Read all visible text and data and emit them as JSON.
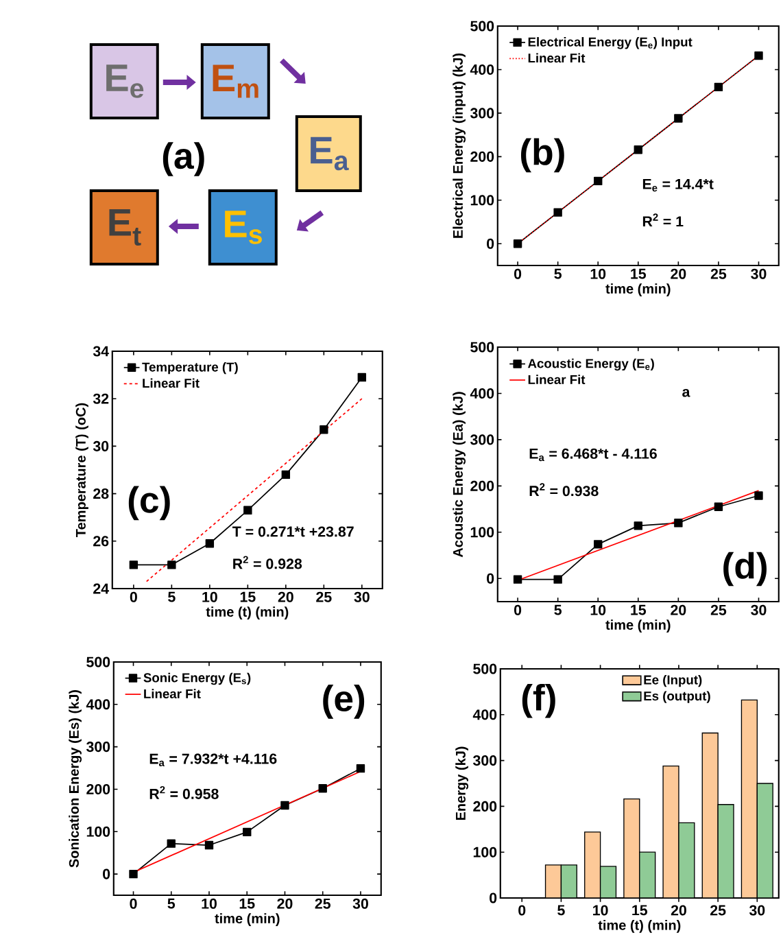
{
  "chart_data": [
    {
      "type": "other",
      "annotations": [
        "E$_{e}$",
        "E$_{m}$",
        "E$_{a}$",
        "E$_{s}$",
        "E$_{t}$",
        "(a)"
      ]
    },
    {
      "type": "line",
      "xlabel": "time (min)",
      "ylabel": "Electrical Energy (input) (kJ)",
      "xlim": [
        -2.5,
        32.5
      ],
      "ylim": [
        -50,
        500
      ],
      "xticks": [
        0,
        5,
        10,
        15,
        20,
        25,
        30
      ],
      "yticks": [
        0,
        100,
        200,
        300,
        400,
        500
      ],
      "legend": "top left",
      "annotations": [
        "(b)",
        "E$_{e}$ = 14.4*t",
        "R$^{2}$ = 1"
      ],
      "series": [
        {
          "name": "Electrical Energy (E$_{e}$) Input",
          "color": "#000000",
          "marker": "square",
          "line_style": "solid",
          "x": [
            0,
            5,
            10,
            15,
            20,
            25,
            30
          ],
          "values": [
            0,
            72,
            144,
            216,
            288,
            360,
            432
          ]
        },
        {
          "name": "Linear Fit",
          "color": "#ff0000",
          "marker": "none",
          "line_style": "dotted",
          "x": [
            0,
            30
          ],
          "values": [
            0,
            432
          ]
        }
      ]
    },
    {
      "type": "line",
      "xlabel": "time (t) (min)",
      "ylabel": "Temperature (T) (oC)",
      "xlim": [
        -2.8,
        32.7
      ],
      "ylim": [
        24,
        34
      ],
      "xticks": [
        0,
        5,
        10,
        15,
        20,
        25,
        30
      ],
      "yticks": [
        24,
        26,
        28,
        30,
        32,
        34
      ],
      "legend": "top left",
      "annotations": [
        "(c)",
        "T = 0.271*t +23.87",
        "R$^{2}$ = 0.928"
      ],
      "series": [
        {
          "name": "Temperature (T)",
          "color": "#000000",
          "marker": "square",
          "line_style": "solid",
          "x": [
            0,
            5,
            10,
            15,
            20,
            25,
            30
          ],
          "values": [
            25,
            25,
            25.9,
            27.3,
            28.8,
            30.7,
            32.9
          ]
        },
        {
          "name": "Linear Fit",
          "color": "#ff0000",
          "marker": "none",
          "line_style": "dashed",
          "x": [
            1.7,
            30
          ],
          "values": [
            24.3,
            32.0
          ]
        }
      ]
    },
    {
      "type": "line",
      "xlabel": "time (min)",
      "ylabel": "Acoustic Energy (Ea) (kJ)",
      "xlim": [
        -2.5,
        32.5
      ],
      "ylim": [
        -50,
        500
      ],
      "xticks": [
        0,
        5,
        10,
        15,
        20,
        25,
        30
      ],
      "yticks": [
        0,
        100,
        200,
        300,
        400,
        500
      ],
      "legend": "top left",
      "annotations": [
        "(d)",
        "a",
        "E$_{a}$ = 6.468*t - 4.116",
        "R$^{2}$ = 0.938"
      ],
      "series": [
        {
          "name": "Acoustic Energy (E$_{e}$)",
          "color": "#000000",
          "marker": "square",
          "line_style": "solid",
          "x": [
            0,
            5,
            10,
            15,
            20,
            25,
            30
          ],
          "values": [
            -2,
            -2,
            74,
            114,
            120,
            155,
            179
          ]
        },
        {
          "name": "Linear Fit",
          "color": "#ff0000",
          "marker": "none",
          "line_style": "solid",
          "x": [
            0,
            30
          ],
          "values": [
            -4,
            190
          ]
        }
      ]
    },
    {
      "type": "line",
      "xlabel": "time (min)",
      "ylabel": "Sonication Energy (Es) (kJ)",
      "xlim": [
        -2.6,
        32.7
      ],
      "ylim": [
        -50,
        500
      ],
      "xticks": [
        0,
        5,
        10,
        15,
        20,
        25,
        30
      ],
      "yticks": [
        0,
        100,
        200,
        300,
        400,
        500
      ],
      "legend": "top left",
      "annotations": [
        "(e)",
        "E$_{a}$ = 7.932*t +4.116",
        "R$^{2}$ = 0.958"
      ],
      "series": [
        {
          "name": "Sonic Energy (E$_{s}$)",
          "color": "#000000",
          "marker": "square",
          "line_style": "solid",
          "x": [
            0,
            5,
            10,
            15,
            20,
            25,
            30
          ],
          "values": [
            0,
            72,
            68,
            99,
            162,
            202,
            249
          ]
        },
        {
          "name": "Linear Fit",
          "color": "#ff0000",
          "marker": "none",
          "line_style": "solid",
          "x": [
            0,
            30
          ],
          "values": [
            4,
            242
          ]
        }
      ]
    },
    {
      "type": "bar",
      "xlabel": "time (t) (min)",
      "ylabel": "Energy (kJ)",
      "categories": [
        "0",
        "5",
        "10",
        "15",
        "20",
        "25",
        "30"
      ],
      "ylim": [
        0,
        500
      ],
      "yticks": [
        0,
        100,
        200,
        300,
        400,
        500
      ],
      "legend": "top",
      "annotations": [
        "(f)"
      ],
      "series": [
        {
          "name": "Ee (Input)",
          "color": "#fdc998",
          "values": [
            null,
            72,
            144,
            216,
            288,
            360,
            432
          ]
        },
        {
          "name": "Es (output)",
          "color": "#8fcb96",
          "values": [
            null,
            72,
            69,
            100,
            164,
            204,
            250
          ]
        }
      ]
    }
  ]
}
